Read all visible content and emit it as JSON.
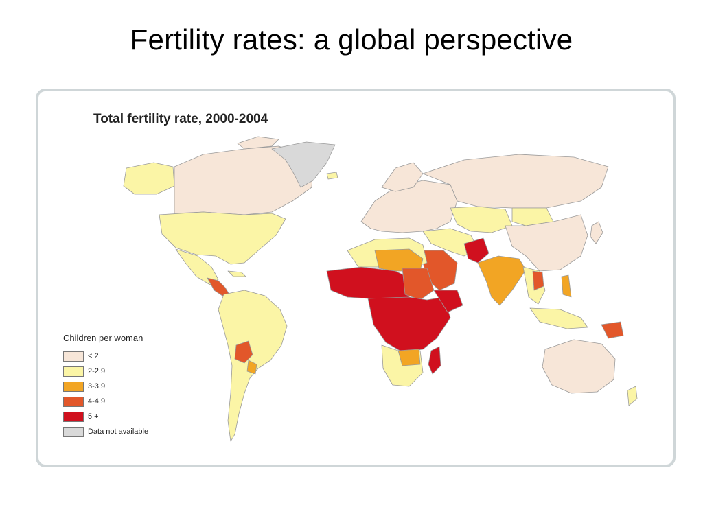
{
  "slide": {
    "title": "Fertility rates:  a global perspective"
  },
  "map": {
    "title": "Total fertility rate, 2000-2004",
    "legend": {
      "title": "Children per woman",
      "items": [
        {
          "label": "< 2",
          "color": "#f7e6d8"
        },
        {
          "label": "2-2.9",
          "color": "#fbf5a6"
        },
        {
          "label": "3-3.9",
          "color": "#f2a524"
        },
        {
          "label": "4-4.9",
          "color": "#e2572a"
        },
        {
          "label": "5 +",
          "color": "#d0101e"
        },
        {
          "label": "Data not available",
          "color": "#d9d9d9"
        }
      ]
    }
  }
}
